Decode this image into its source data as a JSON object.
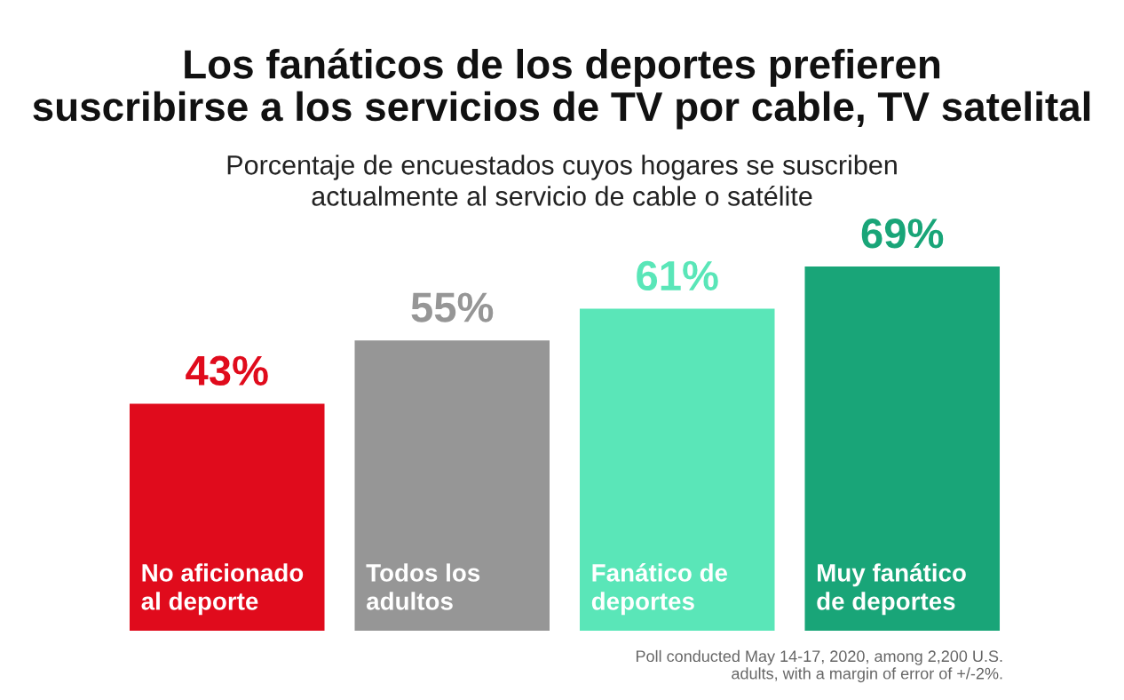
{
  "chart_data": {
    "type": "bar",
    "title": "Los fanáticos de los deportes prefieren\nsuscribirse a los servicios de TV por cable, TV satelital",
    "subtitle": "Porcentaje de encuestados cuyos hogares se suscriben\nactualmente al servicio de cable o satélite",
    "categories": [
      "No aficionado\nal deporte",
      "Todos los\nadultos",
      "Fanático de\ndeportes",
      "Muy fanático\nde deportes"
    ],
    "values": [
      43,
      55,
      61,
      69
    ],
    "value_labels": [
      "43%",
      "55%",
      "61%",
      "69%"
    ],
    "colors": [
      "#e00b1c",
      "#969696",
      "#5ae6b8",
      "#19a578"
    ],
    "annotations": [
      "Poll conducted May 14-17, 2020, among 2,200 U.S.\nadults, with a margin of error of +/-2%."
    ],
    "data_labels": false
  }
}
